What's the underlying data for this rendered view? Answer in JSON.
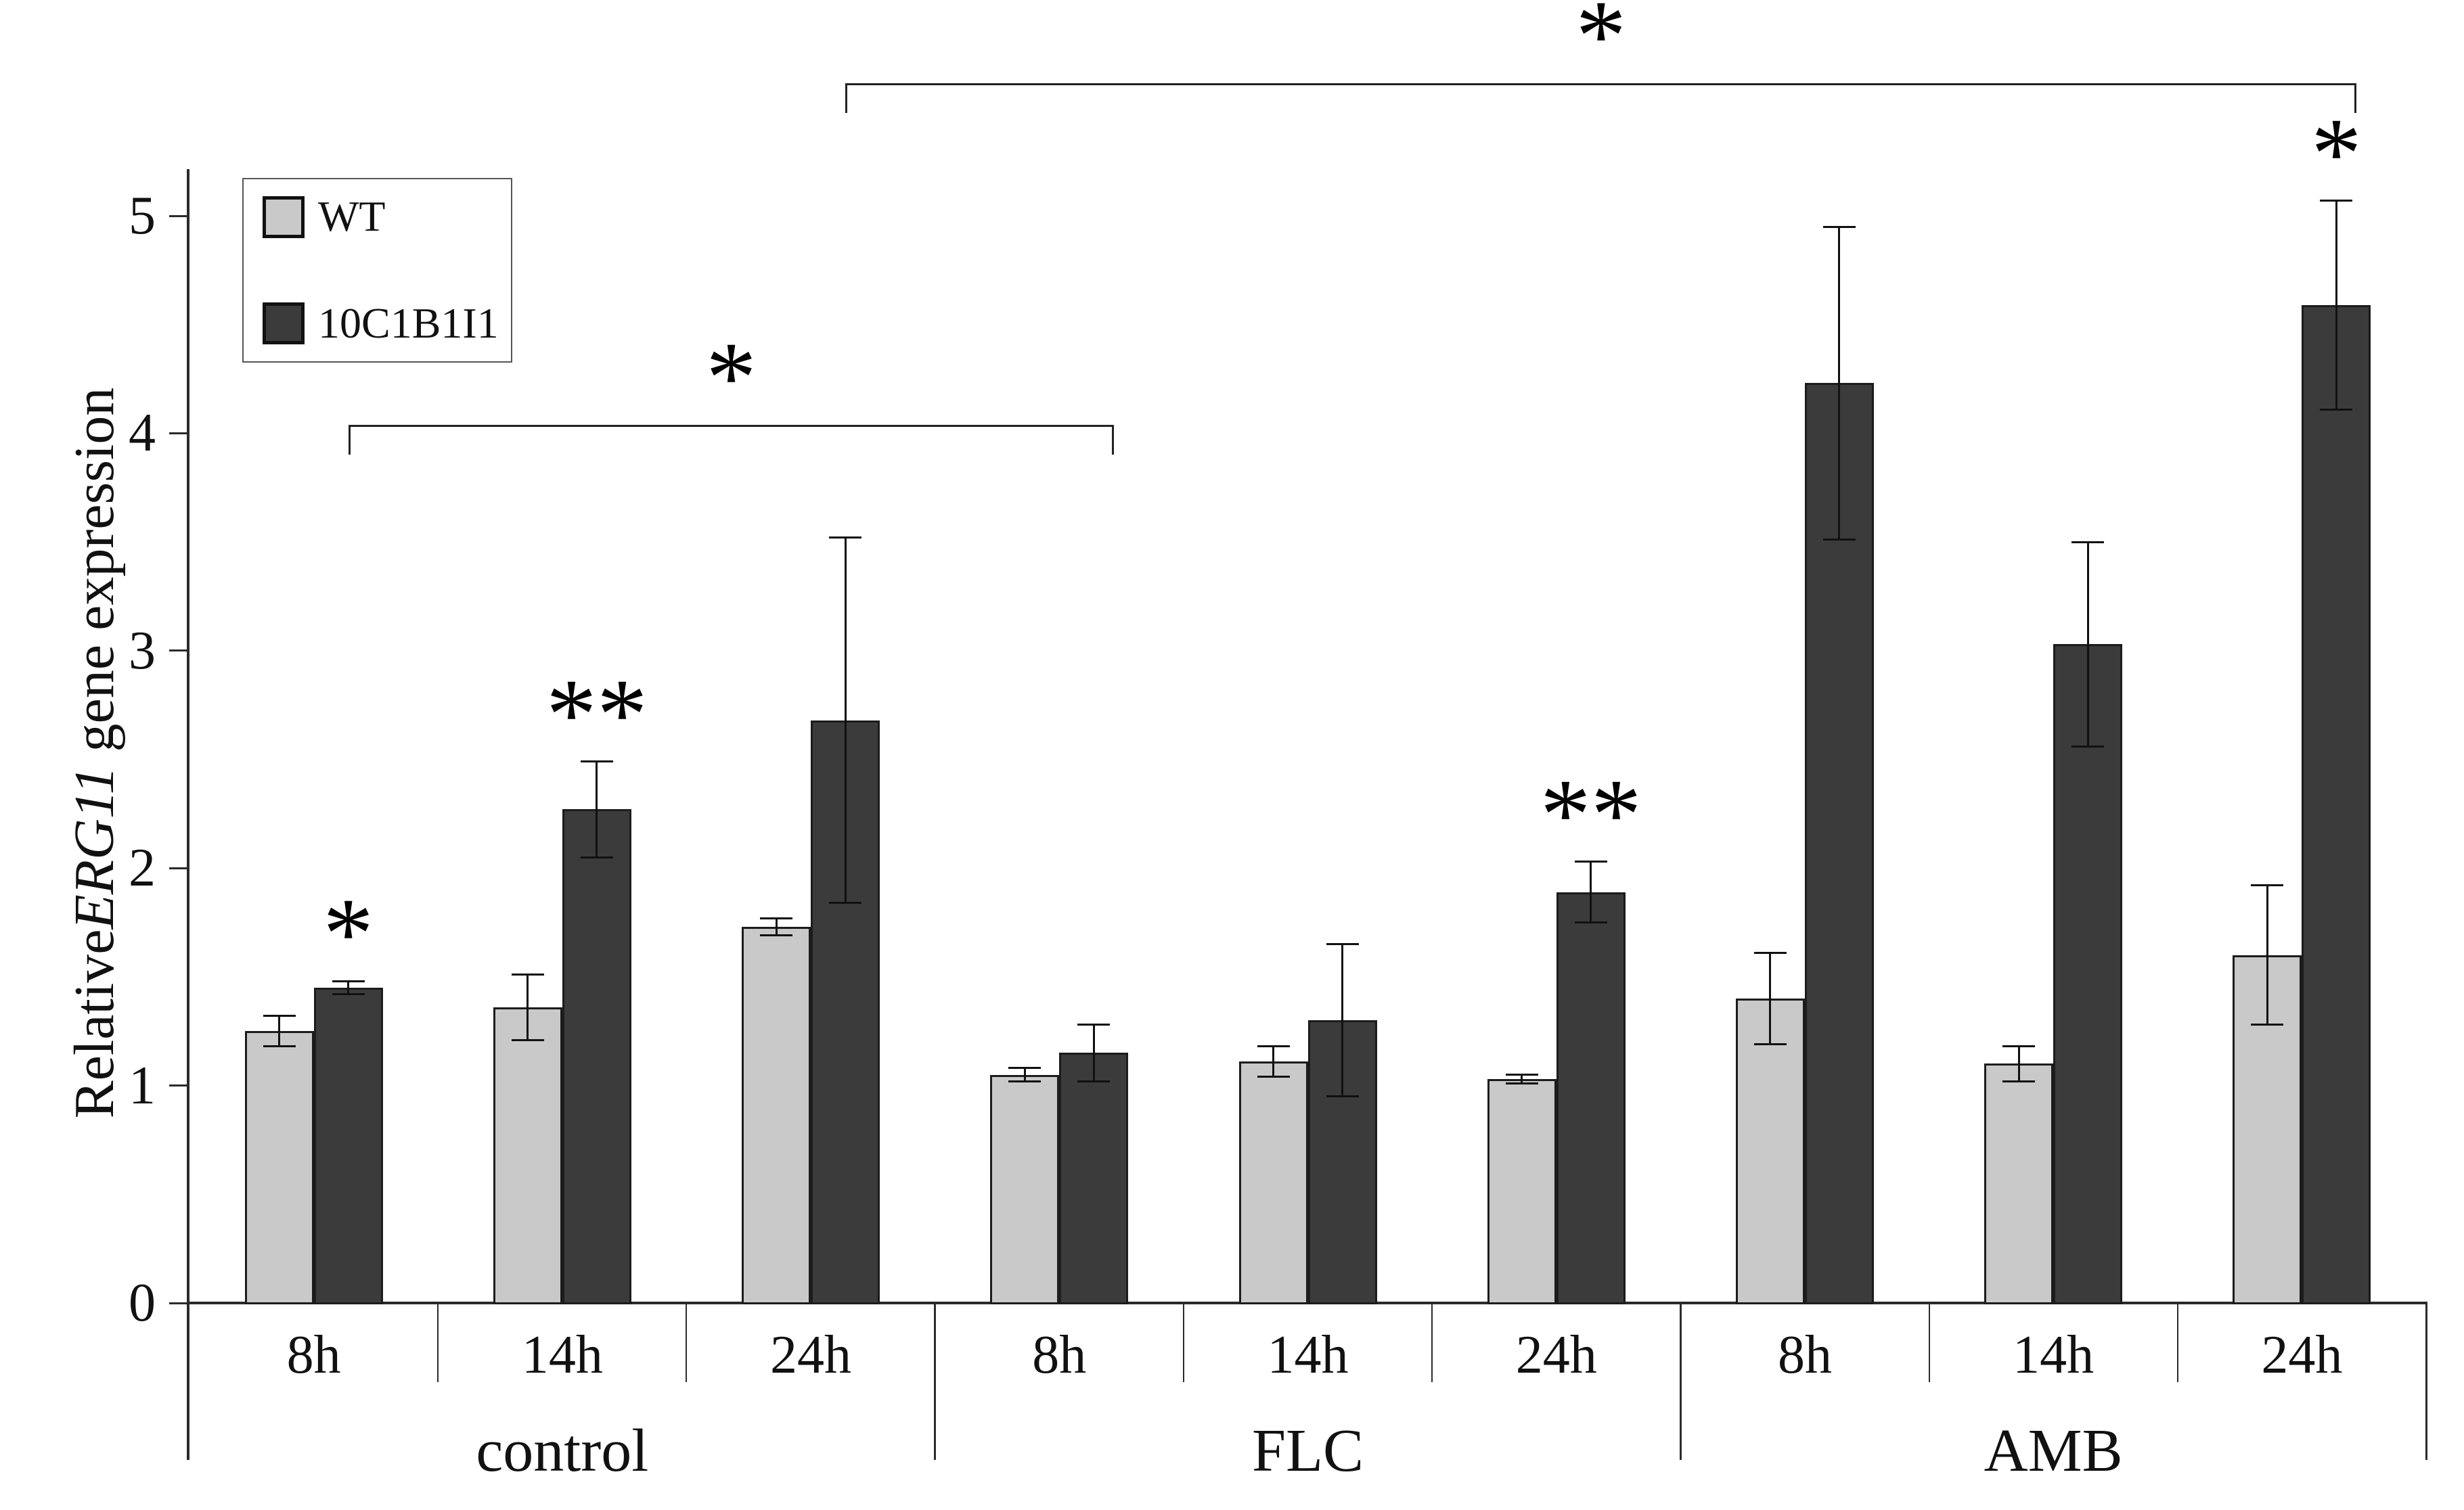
{
  "figure": {
    "ylabel_prefix": "Relative",
    "ylabel_italic": "ERG11",
    "ylabel_suffix": " gene expression"
  },
  "legend": {
    "items": [
      {
        "label": "WT",
        "color": "#c9c9c9"
      },
      {
        "label": "10C1B1I1",
        "color": "#3b3b3b"
      }
    ]
  },
  "chart_data": {
    "type": "bar",
    "title": "",
    "xlabel": "",
    "ylabel": "Relative ERG11 gene expression",
    "ylim": [
      0,
      5.2
    ],
    "yticks": [
      "0",
      "1",
      "2",
      "3",
      "4",
      "5"
    ],
    "grid": false,
    "legend_position": "upper-left",
    "groups": [
      "control",
      "FLC",
      "AMB"
    ],
    "categories": [
      "8h",
      "14h",
      "24h"
    ],
    "series": [
      {
        "name": "WT",
        "color": "#c9c9c9",
        "values": [
          1.25,
          1.36,
          1.73,
          1.05,
          1.11,
          1.03,
          1.4,
          1.1,
          1.6
        ],
        "errors": [
          0.07,
          0.15,
          0.04,
          0.03,
          0.07,
          0.02,
          0.21,
          0.08,
          0.32
        ],
        "sig": [
          null,
          null,
          null,
          null,
          null,
          null,
          null,
          null,
          null
        ]
      },
      {
        "name": "10C1B1I1",
        "color": "#3b3b3b",
        "values": [
          1.45,
          2.27,
          2.68,
          1.15,
          1.3,
          1.89,
          4.23,
          3.03,
          4.59
        ],
        "errors": [
          0.03,
          0.22,
          0.84,
          0.13,
          0.35,
          0.14,
          0.72,
          0.47,
          0.48
        ],
        "sig": [
          "*",
          "**",
          null,
          null,
          null,
          "**",
          null,
          null,
          "*"
        ]
      }
    ],
    "significance_note_symbols": [
      "*",
      "**"
    ],
    "brackets": [
      {
        "series": 1,
        "from_cell": 0,
        "to_cell": 3,
        "y_value": 4.04,
        "label": "*"
      },
      {
        "series": 1,
        "from_cell": 2,
        "to_cell": 8,
        "y_value": 5.61,
        "label": "*"
      }
    ]
  }
}
